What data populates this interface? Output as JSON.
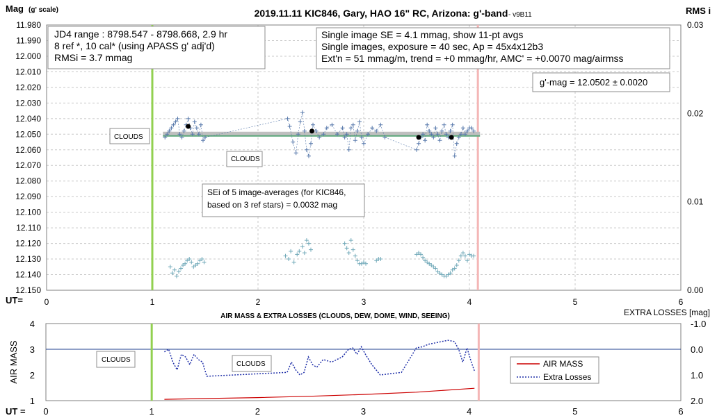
{
  "chart_data": [
    {
      "type": "scatter",
      "title": "2019.11.11 KIC846, Gary, HAO 16\" RC, Arizona: g'-band",
      "title_suffix": "- v9B11",
      "ylabel": "Mag",
      "ylabel_note": "(g' scale)",
      "y2label": "RMS i",
      "xlabel": "UT=",
      "xlim": [
        0,
        6
      ],
      "ylim": [
        12.15,
        11.98
      ],
      "y2lim": [
        0,
        0.03
      ],
      "xticks": [
        "0",
        "1",
        "2",
        "3",
        "4",
        "5",
        "6"
      ],
      "yticks": [
        "11.980",
        "11.990",
        "12.000",
        "12.010",
        "12.020",
        "12.030",
        "12.040",
        "12.050",
        "12.060",
        "12.070",
        "12.080",
        "12.090",
        "12.100",
        "12.110",
        "12.120",
        "12.130",
        "12.140",
        "12.150"
      ],
      "y2ticks": [
        "0.00",
        "0.01",
        "0.02",
        "0.03"
      ],
      "grid": true,
      "vlines": [
        {
          "x": 1.0,
          "color": "#92d050"
        },
        {
          "x": 4.08,
          "color": "#f4b6b6"
        }
      ],
      "fit_line": {
        "x": [
          1.1,
          4.1
        ],
        "y": 12.0502,
        "band_color": "#bfbfbf",
        "line_color": "#5aa77a"
      },
      "series": [
        {
          "color": "#5577aa",
          "x": [
            1.12,
            1.14,
            1.16,
            1.18,
            1.2,
            1.22,
            1.24,
            1.26,
            1.28,
            1.3,
            1.32,
            1.34,
            1.36,
            1.38,
            1.4,
            1.42,
            1.44,
            1.46,
            1.48,
            1.5,
            2.28,
            2.3,
            2.33,
            2.36,
            2.38,
            2.4,
            2.42,
            2.44,
            2.46,
            2.48,
            2.5,
            2.52,
            2.55,
            2.58,
            2.62,
            2.65,
            2.7,
            2.75,
            2.8,
            2.82,
            2.84,
            2.86,
            2.88,
            2.9,
            2.92,
            2.94,
            2.96,
            2.98,
            3.0,
            3.04,
            3.08,
            3.12,
            3.16,
            3.2,
            3.5,
            3.52,
            3.54,
            3.56,
            3.58,
            3.6,
            3.62,
            3.64,
            3.66,
            3.68,
            3.7,
            3.72,
            3.74,
            3.76,
            3.78,
            3.8,
            3.82,
            3.84,
            3.86,
            3.88,
            3.9,
            3.92,
            3.94,
            3.96,
            3.98,
            4.0,
            4.02,
            4.04
          ],
          "y": [
            12.052,
            12.05,
            12.048,
            12.046,
            12.044,
            12.042,
            12.04,
            12.05,
            12.052,
            12.048,
            12.044,
            12.04,
            12.046,
            12.05,
            12.042,
            12.046,
            12.05,
            12.044,
            12.054,
            12.052,
            12.04,
            12.045,
            12.055,
            12.062,
            12.05,
            12.042,
            12.036,
            12.048,
            12.06,
            12.064,
            12.056,
            12.044,
            12.048,
            12.052,
            12.05,
            12.046,
            12.044,
            12.05,
            12.046,
            12.052,
            12.05,
            12.06,
            12.046,
            12.044,
            12.054,
            12.048,
            12.042,
            12.052,
            12.056,
            12.05,
            12.046,
            12.048,
            12.044,
            12.052,
            12.06,
            12.056,
            12.052,
            12.05,
            12.054,
            12.044,
            12.048,
            12.05,
            12.052,
            12.046,
            12.05,
            12.054,
            12.048,
            12.044,
            12.05,
            12.052,
            12.048,
            12.044,
            12.064,
            12.056,
            12.052,
            12.05,
            12.046,
            12.05,
            12.048,
            12.046,
            12.046,
            12.048
          ]
        },
        {
          "name": "11-pt avgs",
          "color": "#000000",
          "x": [
            1.34,
            2.51,
            3.52,
            3.83
          ],
          "y": [
            12.045,
            12.048,
            12.052,
            12.052
          ]
        },
        {
          "color": "#6fa8b8",
          "x": [
            1.17,
            1.19,
            1.21,
            1.23,
            1.25,
            1.27,
            1.29,
            1.31,
            1.33,
            1.35,
            1.37,
            1.39,
            1.41,
            1.43,
            1.45,
            1.47,
            1.49,
            2.26,
            2.29,
            2.31,
            2.34,
            2.37,
            2.39,
            2.42,
            2.44,
            2.46,
            2.48,
            2.5,
            2.82,
            2.84,
            2.86,
            2.88,
            2.9,
            2.92,
            2.94,
            2.96,
            2.98,
            3.0,
            3.02,
            3.12,
            3.14,
            3.16,
            3.5,
            3.52,
            3.54,
            3.56,
            3.58,
            3.6,
            3.62,
            3.64,
            3.66,
            3.68,
            3.7,
            3.72,
            3.74,
            3.76,
            3.78,
            3.8,
            3.82,
            3.84,
            3.86,
            3.88,
            3.9,
            3.92,
            3.94,
            3.96,
            3.98,
            4.0,
            4.02,
            4.04
          ],
          "y": [
            12.135,
            12.139,
            12.137,
            12.141,
            12.138,
            12.136,
            12.134,
            12.133,
            12.131,
            12.13,
            12.132,
            12.135,
            12.134,
            12.133,
            12.131,
            12.13,
            12.132,
            12.128,
            12.13,
            12.125,
            12.132,
            12.127,
            12.125,
            12.122,
            12.126,
            12.118,
            12.12,
            12.124,
            12.12,
            12.123,
            12.126,
            12.118,
            12.124,
            12.128,
            12.131,
            12.133,
            12.133,
            12.132,
            12.133,
            12.131,
            12.13,
            12.13,
            12.127,
            12.126,
            12.127,
            12.129,
            12.131,
            12.132,
            12.133,
            12.134,
            12.135,
            12.136,
            12.138,
            12.139,
            12.14,
            12.141,
            12.141,
            12.14,
            12.139,
            12.137,
            12.136,
            12.134,
            12.131,
            12.128,
            12.126,
            12.128,
            12.131,
            12.127,
            12.128,
            12.128
          ]
        }
      ],
      "annotations": {
        "info_left": [
          "JD4 range : 8798.547 - 8798.668,  2.9  hr",
          "8 ref *, 10 cal* (using APASS g' adj'd)",
          "RMSi = 3.7 mmag"
        ],
        "info_right": [
          "Single image SE = 4.1 mmag, show  11-pt avgs",
          "Single images, exposure = 40 sec, Ap = 45x4x12b3",
          "Ext'n = 51 mmag/m, trend =  +0 mmag/hr, AMC' = +0.0070 mag/airmss"
        ],
        "gmag": "g'-mag = 12.0502 ± 0.0020",
        "clouds_1": "CLOUDS",
        "clouds_2": "CLOUDS",
        "sei": [
          "SEi of 5 image-averages (for KIC846,",
          "based on 3 ref stars) = 0.0032 mag"
        ]
      }
    },
    {
      "type": "line",
      "title": "AIR MASS & EXTRA LOSSES (CLOUDS, DEW, DOME, WIND, SEEING)",
      "ylabel": "AIR MASS",
      "y2label": "EXTRA LOSSES [mag]",
      "xlabel": "UT =",
      "xlim": [
        0,
        6
      ],
      "ylim": [
        1,
        4
      ],
      "y2lim": [
        2.0,
        -1.0
      ],
      "xticks": [
        "0",
        "1",
        "2",
        "3",
        "4",
        "5",
        "6"
      ],
      "yticks": [
        "1",
        "2",
        "3",
        "4"
      ],
      "y2ticks": [
        "-1.0",
        "0.0",
        "1.0",
        "2.0"
      ],
      "vlines": [
        {
          "x": 1.0,
          "color": "#92d050"
        },
        {
          "x": 4.09,
          "color": "#f4b6b6"
        }
      ],
      "hline": {
        "y": 3.0,
        "color": "#1f3f8f"
      },
      "series": [
        {
          "name": "AIR MASS",
          "color": "#cc0000",
          "style": "solid",
          "axis": "left",
          "x": [
            1.12,
            1.5,
            2.0,
            2.5,
            3.0,
            3.5,
            4.05
          ],
          "y": [
            1.05,
            1.08,
            1.12,
            1.17,
            1.24,
            1.33,
            1.48
          ]
        },
        {
          "name": "Extra Losses",
          "color": "#1f2fa8",
          "style": "dotted",
          "axis": "right",
          "x": [
            1.12,
            1.16,
            1.2,
            1.24,
            1.28,
            1.32,
            1.36,
            1.4,
            1.44,
            1.48,
            1.52,
            2.28,
            2.32,
            2.36,
            2.4,
            2.44,
            2.48,
            2.52,
            2.56,
            2.62,
            2.7,
            2.8,
            2.86,
            2.9,
            2.94,
            2.98,
            3.02,
            3.08,
            3.16,
            3.36,
            3.5,
            3.56,
            3.62,
            3.68,
            3.74,
            3.8,
            3.86,
            3.9,
            3.94,
            3.98,
            4.02,
            4.05
          ],
          "y": [
            0.1,
            0.0,
            0.5,
            0.8,
            0.2,
            0.3,
            0.6,
            0.2,
            0.4,
            0.5,
            1.05,
            0.9,
            0.5,
            0.8,
            1.0,
            0.9,
            0.3,
            0.6,
            0.7,
            0.4,
            0.5,
            0.3,
            0.0,
            -0.05,
            0.2,
            -0.1,
            0.2,
            0.6,
            1.0,
            0.9,
            -0.05,
            -0.1,
            -0.2,
            -0.25,
            -0.3,
            -0.35,
            -0.3,
            0.0,
            0.5,
            -0.05,
            0.5,
            0.85
          ]
        }
      ],
      "legend": "right",
      "annotations": {
        "clouds_1": "CLOUDS",
        "clouds_2": "CLOUDS"
      }
    }
  ]
}
